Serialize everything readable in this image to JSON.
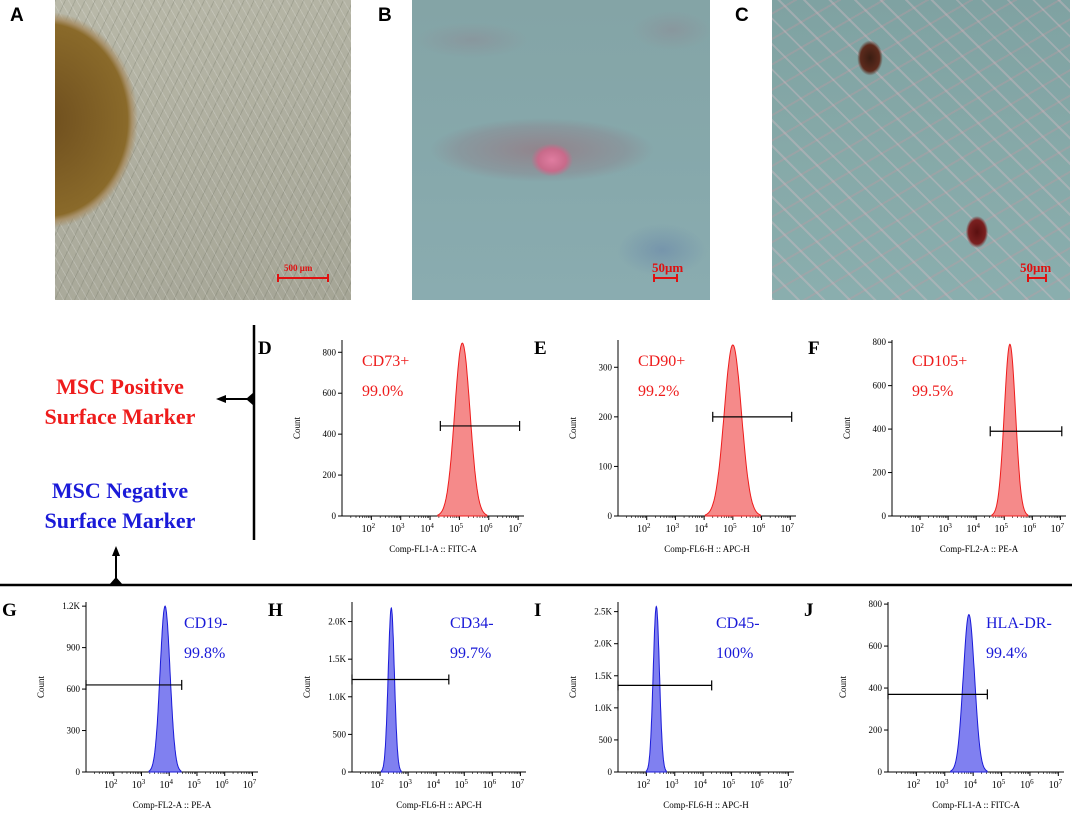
{
  "panels": {
    "A": {
      "label": "A",
      "scale": "500 μm"
    },
    "B": {
      "label": "B",
      "scale": "50μm"
    },
    "C": {
      "label": "C",
      "scale": "50μm"
    }
  },
  "side_labels": {
    "positive": [
      "MSC Positive",
      "Surface Marker"
    ],
    "negative": [
      "MSC Negative",
      "Surface Marker"
    ]
  },
  "colors": {
    "positive": "#ee1c1c",
    "negative": "#1a1ad8",
    "positive_fill": "#f58a8a",
    "negative_fill": "#8080f0"
  },
  "chart_data": [
    {
      "id": "D",
      "type": "histogram",
      "marker": "CD73+",
      "percent": "99.0%",
      "color": "positive",
      "xlabel": "Comp-FL1-A :: FITC-A",
      "ylabel": "Count",
      "xlog": true,
      "xlim": [
        1,
        7.2
      ],
      "ylim": [
        0,
        860
      ],
      "yticks": [
        "0",
        "200",
        "400",
        "600",
        "800"
      ],
      "ytick_values": [
        0,
        200,
        400,
        600,
        800
      ],
      "xticks": [
        "10^2",
        "10^3",
        "10^4",
        "10^5",
        "10^6",
        "10^7"
      ],
      "peak_log": 5.1,
      "peak_count": 845,
      "width": 0.26,
      "gate": {
        "from_log": 4.35,
        "to_log": 7.05,
        "count": 440
      }
    },
    {
      "id": "E",
      "type": "histogram",
      "marker": "CD90+",
      "percent": "99.2%",
      "color": "positive",
      "xlabel": "Comp-FL6-H :: APC-H",
      "ylabel": "Count",
      "xlog": true,
      "xlim": [
        1,
        7.2
      ],
      "ylim": [
        0,
        355
      ],
      "yticks": [
        "0",
        "100",
        "200",
        "300"
      ],
      "ytick_values": [
        0,
        100,
        200,
        300
      ],
      "xticks": [
        "10^2",
        "10^3",
        "10^4",
        "10^5",
        "10^6",
        "10^7"
      ],
      "peak_log": 5.0,
      "peak_count": 345,
      "width": 0.3,
      "gate": {
        "from_log": 4.3,
        "to_log": 7.05,
        "count": 200
      }
    },
    {
      "id": "F",
      "type": "histogram",
      "marker": "CD105+",
      "percent": "99.5%",
      "color": "positive",
      "xlabel": "Comp-FL2-A :: PE-A",
      "ylabel": "Count",
      "xlog": true,
      "xlim": [
        1,
        7.2
      ],
      "ylim": [
        0,
        810
      ],
      "yticks": [
        "0",
        "200",
        "400",
        "600",
        "800"
      ],
      "ytick_values": [
        0,
        200,
        400,
        600,
        800
      ],
      "xticks": [
        "10^2",
        "10^3",
        "10^4",
        "10^5",
        "10^6",
        "10^7"
      ],
      "peak_log": 5.2,
      "peak_count": 790,
      "width": 0.2,
      "gate": {
        "from_log": 4.5,
        "to_log": 7.05,
        "count": 390
      }
    },
    {
      "id": "G",
      "type": "histogram",
      "marker": "CD19-",
      "percent": "99.8%",
      "color": "negative",
      "xlabel": "Comp-FL2-A :: PE-A",
      "ylabel": "Count",
      "xlog": true,
      "xlim": [
        1,
        7.2
      ],
      "ylim": [
        0,
        1230
      ],
      "yticks": [
        "0",
        "300",
        "600",
        "900",
        "1.2K"
      ],
      "ytick_values": [
        0,
        300,
        600,
        900,
        1200
      ],
      "xticks": [
        "10^2",
        "10^3",
        "10^4",
        "10^5",
        "10^6",
        "10^7"
      ],
      "peak_log": 3.85,
      "peak_count": 1200,
      "width": 0.18,
      "gate": {
        "from_log": 1.0,
        "to_log": 4.45,
        "count": 630
      }
    },
    {
      "id": "H",
      "type": "histogram",
      "marker": "CD34-",
      "percent": "99.7%",
      "color": "negative",
      "xlabel": "Comp-FL6-H :: APC-H",
      "ylabel": "Count",
      "xlog": true,
      "xlim": [
        1,
        7.2
      ],
      "ylim": [
        0,
        2260
      ],
      "yticks": [
        "0",
        "500",
        "1.0K",
        "1.5K",
        "2.0K"
      ],
      "ytick_values": [
        0,
        500,
        1000,
        1500,
        2000
      ],
      "xticks": [
        "10^2",
        "10^3",
        "10^4",
        "10^5",
        "10^6",
        "10^7"
      ],
      "peak_log": 2.4,
      "peak_count": 2180,
      "width": 0.11,
      "gate": {
        "from_log": 1.0,
        "to_log": 4.45,
        "count": 1230
      }
    },
    {
      "id": "I",
      "type": "histogram",
      "marker": "CD45-",
      "percent": "100%",
      "color": "negative",
      "xlabel": "Comp-FL6-H :: APC-H",
      "ylabel": "Count",
      "xlog": true,
      "xlim": [
        1,
        7.2
      ],
      "ylim": [
        0,
        2650
      ],
      "yticks": [
        "0",
        "500",
        "1.0K",
        "1.5K",
        "2.0K",
        "2.5K"
      ],
      "ytick_values": [
        0,
        500,
        1000,
        1500,
        2000,
        2500
      ],
      "xticks": [
        "10^2",
        "10^3",
        "10^4",
        "10^5",
        "10^6",
        "10^7"
      ],
      "peak_log": 2.35,
      "peak_count": 2580,
      "width": 0.11,
      "gate": {
        "from_log": 1.0,
        "to_log": 4.3,
        "count": 1350
      }
    },
    {
      "id": "J",
      "type": "histogram",
      "marker": "HLA-DR-",
      "percent": "99.4%",
      "color": "negative",
      "xlabel": "Comp-FL1-A :: FITC-A",
      "ylabel": "Count",
      "xlog": true,
      "xlim": [
        1,
        7.2
      ],
      "ylim": [
        0,
        810
      ],
      "yticks": [
        "0",
        "200",
        "400",
        "600",
        "800"
      ],
      "ytick_values": [
        0,
        200,
        400,
        600,
        800
      ],
      "xticks": [
        "10^2",
        "10^3",
        "10^4",
        "10^5",
        "10^6",
        "10^7"
      ],
      "peak_log": 3.85,
      "peak_count": 750,
      "width": 0.2,
      "gate": {
        "from_log": 1.0,
        "to_log": 4.5,
        "count": 370
      }
    }
  ]
}
